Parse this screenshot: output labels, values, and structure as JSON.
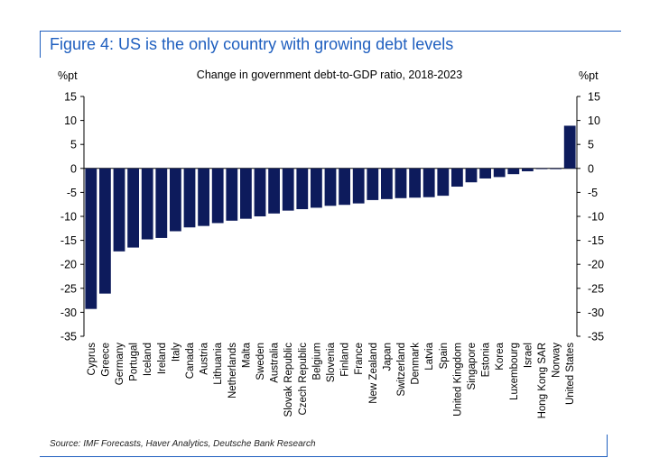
{
  "figure_title": "Figure 4: US is the only country with growing debt levels",
  "source": "Source: IMF Forecasts, Haver Analytics, Deutsche Bank Research",
  "colors": {
    "bar": "#0d1b5c",
    "frame": "#1f5fbf",
    "axis": "#000000"
  },
  "chart_data": {
    "type": "bar",
    "title": "Change in government debt-to-GDP ratio, 2018-2023",
    "ylabel_left": "%pt",
    "ylabel_right": "%pt",
    "ylim": [
      -35,
      15
    ],
    "yticks": [
      15,
      10,
      5,
      0,
      -5,
      -10,
      -15,
      -20,
      -25,
      -30,
      -35
    ],
    "grid": false,
    "categories": [
      "Cyprus",
      "Greece",
      "Germany",
      "Portugal",
      "Iceland",
      "Ireland",
      "Italy",
      "Canada",
      "Austria",
      "Lithuania",
      "Netherlands",
      "Malta",
      "Sweden",
      "Australia",
      "Slovak Republic",
      "Czech Republic",
      "Belgium",
      "Slovenia",
      "Finland",
      "France",
      "New Zealand",
      "Japan",
      "Switzerland",
      "Denmark",
      "Latvia",
      "Spain",
      "United Kingdom",
      "Singapore",
      "Estonia",
      "Korea",
      "Luxembourg",
      "Israel",
      "Hong Kong SAR",
      "Norway",
      "United States"
    ],
    "values": [
      -29.3,
      -26.1,
      -17.3,
      -16.5,
      -14.8,
      -14.5,
      -13.1,
      -12.3,
      -12.0,
      -11.4,
      -10.9,
      -10.5,
      -10.0,
      -9.4,
      -8.8,
      -8.5,
      -8.2,
      -7.8,
      -7.6,
      -7.3,
      -6.6,
      -6.4,
      -6.2,
      -6.1,
      -6.0,
      -5.7,
      -3.8,
      -2.9,
      -2.1,
      -1.8,
      -1.2,
      -0.6,
      -0.1,
      -0.1,
      8.9
    ]
  }
}
